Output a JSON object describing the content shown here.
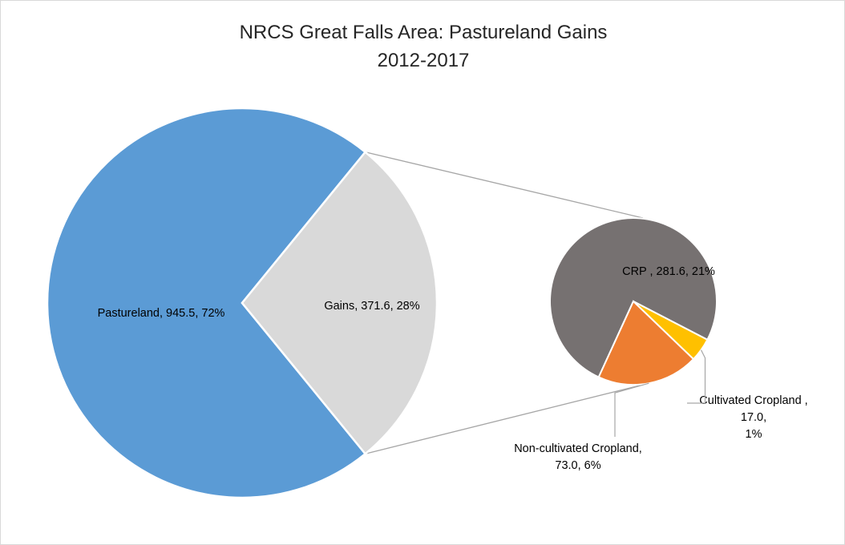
{
  "chart_data": {
    "type": "pie",
    "subtype": "pie-of-pie",
    "title": "NRCS Great Falls Area: Pastureland Gains",
    "subtitle": "2012-2017",
    "main_pie": {
      "slices": [
        {
          "name": "Pastureland",
          "value": 945.5,
          "percent": "72%",
          "label": "Pastureland, 945.5, 72%",
          "color": "#5b9bd5"
        },
        {
          "name": "Gains",
          "value": 371.6,
          "percent": "28%",
          "label": "Gains, 371.6, 28%",
          "color": "#d9d9d9"
        }
      ]
    },
    "secondary_pie": {
      "of": "Gains",
      "slices": [
        {
          "name": "CRP",
          "value": 281.6,
          "percent": "21%",
          "label_lines": [
            "CRP , 281.6, 21%"
          ],
          "color": "#767171"
        },
        {
          "name": "Cultivated Cropland",
          "value": 17.0,
          "percent": "1%",
          "label_lines": [
            "Cultivated Cropland ,",
            "17.0,",
            "1%"
          ],
          "color": "#ffc000"
        },
        {
          "name": "Non-cultivated Cropland",
          "value": 73.0,
          "percent": "6%",
          "label_lines": [
            "Non-cultivated Cropland,",
            "73.0, 6%"
          ],
          "color": "#ed7d31"
        }
      ]
    },
    "legend": "none"
  }
}
